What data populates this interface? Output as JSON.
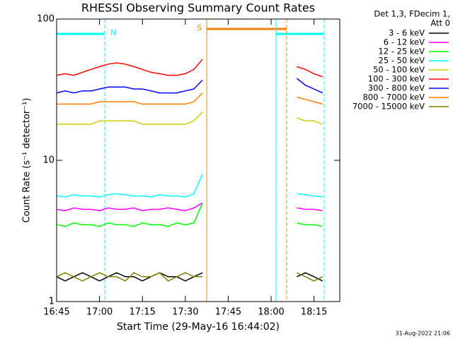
{
  "chart_data": {
    "type": "line",
    "title": "RHESSI Observing Summary Count Rates",
    "x_label": "Start Time (29-May-16 16:44:02)",
    "y_label": "Count Rate (s⁻¹ detector⁻¹)",
    "legend_title": [
      "Det 1,3, FDecim 1,",
      "Att 0"
    ],
    "footer": "31-Aug-2022 21:06",
    "annotations": [
      "N",
      "S"
    ],
    "log_y": true,
    "xlim": [
      "16:45",
      "18:24"
    ],
    "xticks": [
      "16:45",
      "17:00",
      "17:15",
      "17:30",
      "17:45",
      "18:00",
      "18:15"
    ],
    "ylim": [
      1,
      100
    ],
    "yticks": [
      1,
      10,
      100
    ],
    "x": [
      "16:45",
      "16:48",
      "16:51",
      "16:54",
      "16:57",
      "17:00",
      "17:03",
      "17:06",
      "17:09",
      "17:12",
      "17:15",
      "17:18",
      "17:21",
      "17:24",
      "17:27",
      "17:30",
      "17:33",
      "17:36",
      "17:50",
      "18:09",
      "18:12",
      "18:15",
      "18:18"
    ],
    "series": [
      {
        "name": "3 - 6 keV",
        "color": "#000000",
        "values": [
          1.5,
          1.4,
          1.5,
          1.6,
          1.5,
          1.4,
          1.5,
          1.6,
          1.5,
          1.5,
          1.4,
          1.5,
          1.6,
          1.5,
          1.5,
          1.4,
          1.5,
          1.6,
          null,
          1.5,
          1.6,
          1.5,
          1.4
        ]
      },
      {
        "name": "6 - 12 keV",
        "color": "#ff00ff",
        "values": [
          4.5,
          4.4,
          4.6,
          4.5,
          4.5,
          4.4,
          4.6,
          4.5,
          4.5,
          4.6,
          4.4,
          4.5,
          4.5,
          4.6,
          4.5,
          4.4,
          4.6,
          5,
          null,
          4.6,
          4.5,
          4.5,
          4.4
        ]
      },
      {
        "name": "12 - 25 keV",
        "color": "#00ff00",
        "values": [
          3.5,
          3.4,
          3.6,
          3.5,
          3.5,
          3.4,
          3.6,
          3.5,
          3.5,
          3.4,
          3.6,
          3.5,
          3.5,
          3.4,
          3.6,
          3.5,
          3.6,
          5,
          null,
          3.6,
          3.5,
          3.5,
          3.4
        ]
      },
      {
        "name": "25 - 50 keV",
        "color": "#00ffff",
        "values": [
          5.6,
          5.5,
          5.7,
          5.6,
          5.6,
          5.5,
          5.7,
          5.8,
          5.7,
          5.6,
          5.6,
          5.5,
          5.7,
          5.6,
          5.6,
          5.5,
          5.8,
          8,
          null,
          5.8,
          5.7,
          5.6,
          5.5
        ]
      },
      {
        "name": "50 - 100 keV",
        "color": "#cccc00",
        "values": [
          18,
          18,
          18,
          18,
          18,
          19,
          19,
          19,
          19,
          19,
          18,
          18,
          18,
          18,
          18,
          18,
          19,
          22,
          null,
          20,
          19,
          19,
          18
        ]
      },
      {
        "name": "100 - 300 keV",
        "color": "#ff0000",
        "values": [
          40,
          41,
          40,
          42,
          44,
          46,
          48,
          49,
          48,
          46,
          44,
          42,
          41,
          40,
          40,
          41,
          44,
          52,
          null,
          46,
          44,
          41,
          39
        ]
      },
      {
        "name": "300 - 800 keV",
        "color": "#0000ff",
        "values": [
          30,
          31,
          30,
          31,
          31,
          32,
          33,
          33,
          33,
          32,
          32,
          31,
          30,
          30,
          30,
          31,
          32,
          37,
          null,
          38,
          34,
          32,
          30
        ]
      },
      {
        "name": "800 - 7000 keV",
        "color": "#ff8000",
        "values": [
          25,
          25,
          25,
          25,
          25,
          26,
          26,
          26,
          26,
          26,
          25,
          25,
          25,
          25,
          25,
          25,
          26,
          30,
          null,
          28,
          27,
          26,
          25
        ]
      },
      {
        "name": "7000 - 15000 keV",
        "color": "#808000",
        "values": [
          1.5,
          1.6,
          1.5,
          1.4,
          1.5,
          1.6,
          1.5,
          1.5,
          1.4,
          1.6,
          1.5,
          1.5,
          1.6,
          1.4,
          1.5,
          1.6,
          1.5,
          1.5,
          null,
          1.6,
          1.5,
          1.4,
          1.5
        ]
      }
    ]
  }
}
